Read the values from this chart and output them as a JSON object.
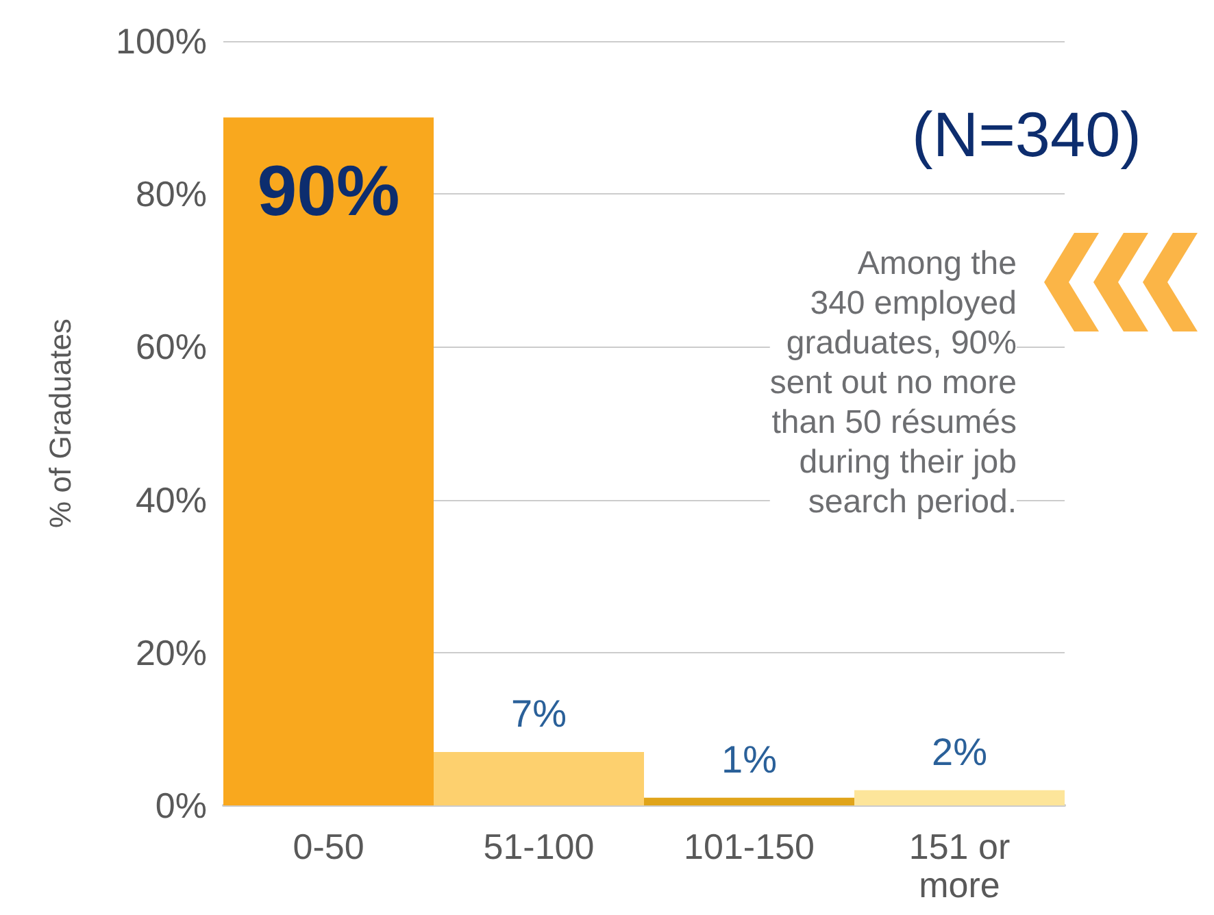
{
  "chart_data": {
    "type": "bar",
    "subtitle": "(N=340)",
    "ylabel": "% of Graduates",
    "categories": [
      "0-50",
      "51-100",
      "101-150",
      "151 or\nmore"
    ],
    "values": [
      90,
      7,
      1,
      2
    ],
    "colors": [
      "#f9a81e",
      "#fdd06e",
      "#e0a41a",
      "#fde59a"
    ],
    "value_labels": [
      "90%",
      "7%",
      "1%",
      "2%"
    ],
    "ylim": [
      0,
      100
    ],
    "yticks": [
      {
        "value": 0,
        "label": "0%"
      },
      {
        "value": 20,
        "label": "20%"
      },
      {
        "value": 40,
        "label": "40%"
      },
      {
        "value": 60,
        "label": "60%"
      },
      {
        "value": 80,
        "label": "80%"
      },
      {
        "value": 100,
        "label": "100%"
      }
    ],
    "annotations": [
      "Among the\n340 employed\ngraduates, 90%\nsent out no more\nthan 50 résumés\nduring their job\nsearch period."
    ],
    "grid": "y"
  }
}
